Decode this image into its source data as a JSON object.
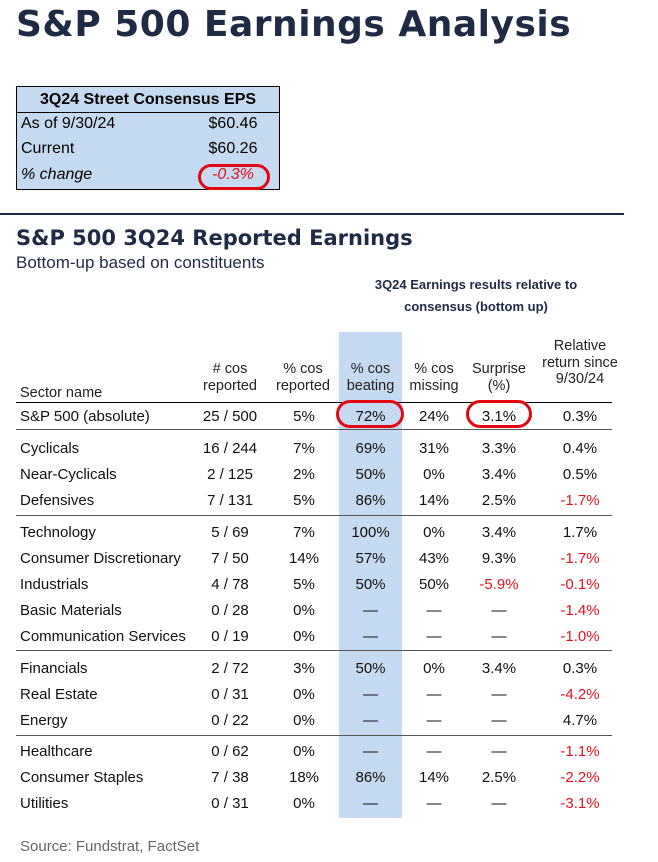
{
  "title": "S&P 500 Earnings Analysis",
  "consensus_box": {
    "title": "3Q24 Street Consensus EPS",
    "rows": [
      {
        "label": "As of 9/30/24",
        "value": "$60.46"
      },
      {
        "label": "Current",
        "value": "$60.26"
      },
      {
        "label": "% change",
        "value": "-0.3%"
      }
    ]
  },
  "section": {
    "title": "S&P 500 3Q24 Reported Earnings",
    "subtitle": "Bottom-up based on constituents",
    "group_header": "3Q24 Earnings results relative to consensus (bottom up)"
  },
  "columns": {
    "sector": "Sector name",
    "reported": "# cos reported",
    "pct_reported": "% cos reported",
    "beating": "% cos beating",
    "missing": "% cos missing",
    "surprise": "Surprise (%)",
    "relative": "Relative return since 9/30/24"
  },
  "colors": {
    "navy": "#1f2a44",
    "band": "#c5daf0",
    "negative": "#e8121e",
    "highlight": "#e30613"
  },
  "rows": [
    {
      "name": "S&P 500 (absolute)",
      "reported": "25 / 500",
      "pct_reported": "5%",
      "beating": "72%",
      "missing": "24%",
      "surprise": "3.1%",
      "relative": "0.3%"
    },
    {
      "name": "Cyclicals",
      "reported": "16 / 244",
      "pct_reported": "7%",
      "beating": "69%",
      "missing": "31%",
      "surprise": "3.3%",
      "relative": "0.4%"
    },
    {
      "name": "Near-Cyclicals",
      "reported": "2 / 125",
      "pct_reported": "2%",
      "beating": "50%",
      "missing": "0%",
      "surprise": "3.4%",
      "relative": "0.5%"
    },
    {
      "name": "Defensives",
      "reported": "7 / 131",
      "pct_reported": "5%",
      "beating": "86%",
      "missing": "14%",
      "surprise": "2.5%",
      "relative": "-1.7%"
    },
    {
      "name": "Technology",
      "reported": "5 / 69",
      "pct_reported": "7%",
      "beating": "100%",
      "missing": "0%",
      "surprise": "3.4%",
      "relative": "1.7%"
    },
    {
      "name": "Consumer Discretionary",
      "reported": "7 / 50",
      "pct_reported": "14%",
      "beating": "57%",
      "missing": "43%",
      "surprise": "9.3%",
      "relative": "-1.7%"
    },
    {
      "name": "Industrials",
      "reported": "4 / 78",
      "pct_reported": "5%",
      "beating": "50%",
      "missing": "50%",
      "surprise": "-5.9%",
      "relative": "-0.1%"
    },
    {
      "name": "Basic Materials",
      "reported": "0 / 28",
      "pct_reported": "0%",
      "beating": "—",
      "missing": "—",
      "surprise": "—",
      "relative": "-1.4%"
    },
    {
      "name": "Communication Services",
      "reported": "0 / 19",
      "pct_reported": "0%",
      "beating": "—",
      "missing": "—",
      "surprise": "—",
      "relative": "-1.0%"
    },
    {
      "name": "Financials",
      "reported": "2 / 72",
      "pct_reported": "3%",
      "beating": "50%",
      "missing": "0%",
      "surprise": "3.4%",
      "relative": "0.3%"
    },
    {
      "name": "Real Estate",
      "reported": "0 / 31",
      "pct_reported": "0%",
      "beating": "—",
      "missing": "—",
      "surprise": "—",
      "relative": "-4.2%"
    },
    {
      "name": "Energy",
      "reported": "0 / 22",
      "pct_reported": "0%",
      "beating": "—",
      "missing": "—",
      "surprise": "—",
      "relative": "4.7%"
    },
    {
      "name": "Healthcare",
      "reported": "0 / 62",
      "pct_reported": "0%",
      "beating": "—",
      "missing": "—",
      "surprise": "—",
      "relative": "-1.1%"
    },
    {
      "name": "Consumer Staples",
      "reported": "7 / 38",
      "pct_reported": "18%",
      "beating": "86%",
      "missing": "14%",
      "surprise": "2.5%",
      "relative": "-2.2%"
    },
    {
      "name": "Utilities",
      "reported": "0 / 31",
      "pct_reported": "0%",
      "beating": "—",
      "missing": "—",
      "surprise": "—",
      "relative": "-3.1%"
    }
  ],
  "source": "Source: Fundstrat, FactSet"
}
